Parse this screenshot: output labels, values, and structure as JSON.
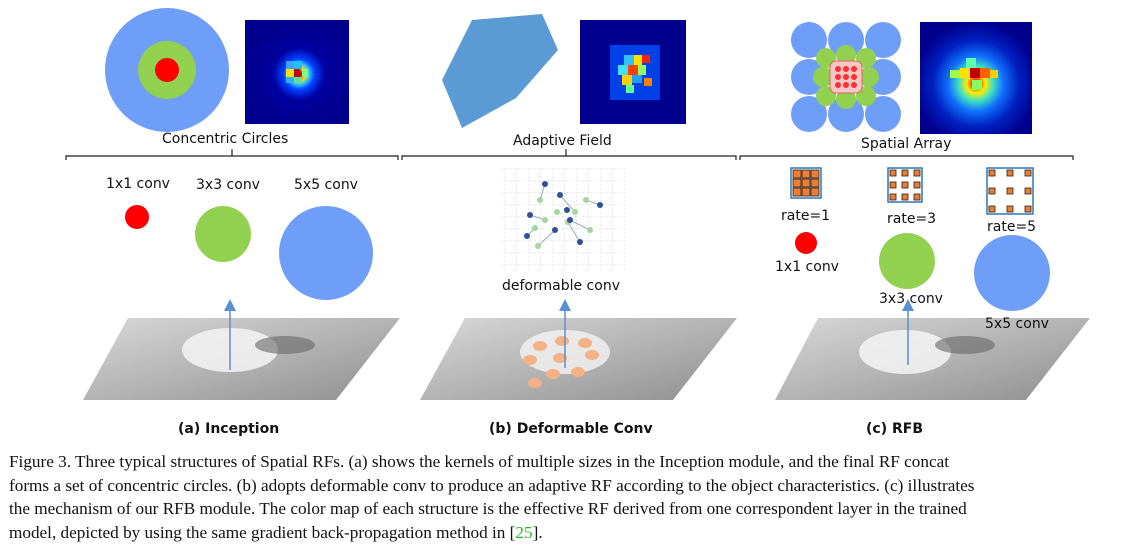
{
  "panels": {
    "inception": {
      "top_title": "Concentric Circles",
      "kernels": [
        "1x1 conv",
        "3x3 conv",
        "5x5 conv"
      ],
      "panel_label": "(a) Inception"
    },
    "deformable": {
      "top_title": "Adaptive Field",
      "kernel_label": "deformable conv",
      "panel_label": "(b) Deformable Conv"
    },
    "rfb": {
      "top_title": "Spatial Array",
      "rates": [
        "rate=1",
        "rate=3",
        "rate=5"
      ],
      "kernels": [
        "1x1 conv",
        "3x3 conv",
        "5x5 conv"
      ],
      "panel_label": "(c) RFB"
    }
  },
  "colors": {
    "red": "#ff0000",
    "green": "#92d050",
    "blue": "#6f9ef8",
    "adaptive_blue": "#5b9bd5",
    "orange_dot": "#f4b183",
    "grid_orange": "#ed7d31",
    "heatmap_bg": "#00008f"
  },
  "caption": {
    "lines": [
      "Figure 3. Three typical structures of Spatial RFs. (a) shows the kernels of multiple sizes in the Inception module, and the final RF concat",
      "forms a set of concentric circles. (b) adopts deformable conv to produce an adaptive RF according to the object characteristics. (c) illustrates",
      "the mechanism of our RFB module. The color map of each structure is the effective RF derived from one correspondent layer in the trained"
    ],
    "last_line_prefix": "model, depicted by using the same gradient back-propagation method in [",
    "ref": "25",
    "last_line_suffix": "]."
  }
}
